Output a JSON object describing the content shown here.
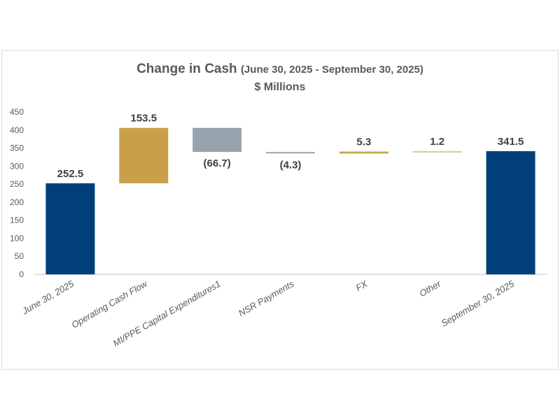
{
  "chart_data": {
    "type": "bar",
    "subtype": "waterfall",
    "title": "Change in Cash",
    "title_suffix": "(June 30, 2025 - September 30, 2025)",
    "subtitle": "$ Millions",
    "categories": [
      "June 30, 2025",
      "Operating Cash Flow",
      "MI/PPE Capital Expenditures1",
      "NSR Payments",
      "FX",
      "Other",
      "September 30, 2025"
    ],
    "values": [
      252.5,
      153.5,
      -66.7,
      -4.3,
      5.3,
      1.2,
      341.5
    ],
    "kinds": [
      "total",
      "delta",
      "delta",
      "delta",
      "delta",
      "delta",
      "total"
    ],
    "data_labels": [
      "252.5",
      "153.5",
      "(66.7)",
      "(4.3)",
      "5.3",
      "1.2",
      "341.5"
    ],
    "colors": [
      "#003f7a",
      "#c9a04a",
      "#97a3ad",
      "#a3abb3",
      "#c9a04a",
      "#d9c99a",
      "#003f7a"
    ],
    "yticks": [
      0,
      50,
      100,
      150,
      200,
      250,
      300,
      350,
      400,
      450
    ],
    "ylim": [
      0,
      450
    ],
    "xlabel": "",
    "ylabel": "",
    "grid": false,
    "legend": "none"
  }
}
